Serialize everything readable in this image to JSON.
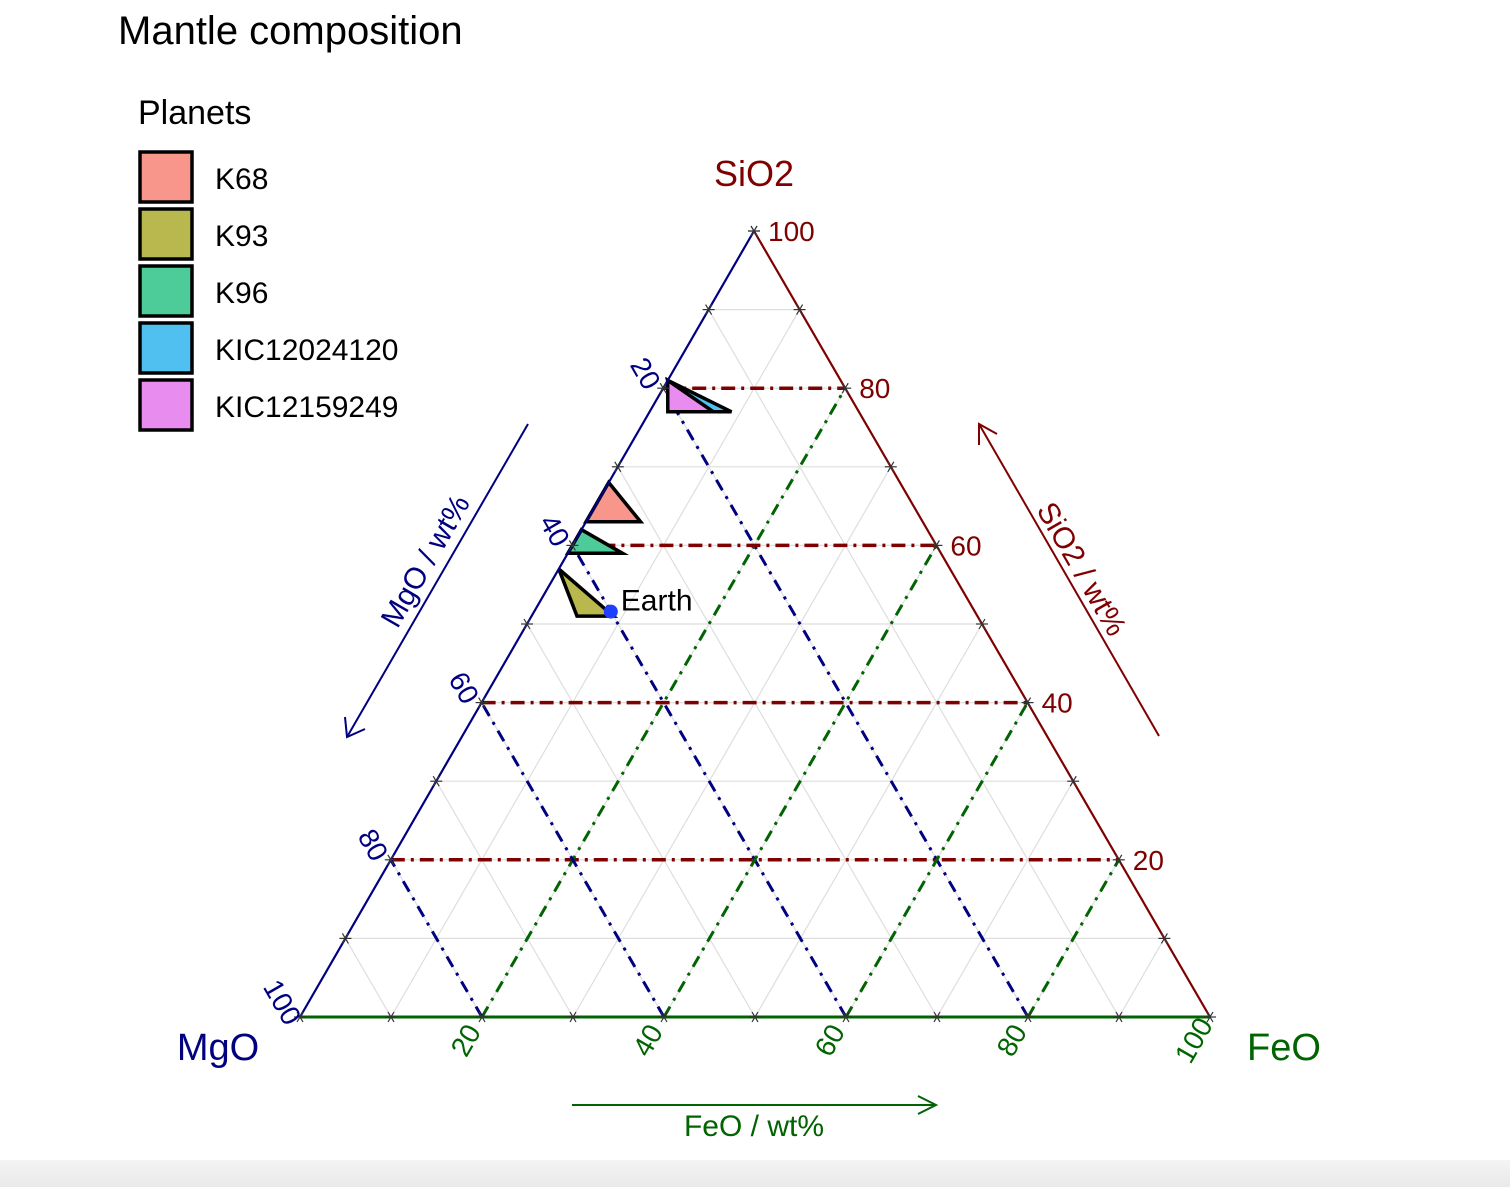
{
  "chart_data": {
    "type": "ternary",
    "title": "Mantle composition",
    "legend": {
      "title": "Planets",
      "position": "top-left",
      "entries": [
        {
          "name": "K68",
          "color": "#F8968B"
        },
        {
          "name": "K93",
          "color": "#B8B84F"
        },
        {
          "name": "K96",
          "color": "#4DCB98"
        },
        {
          "name": "KIC12024120",
          "color": "#4FC0F0"
        },
        {
          "name": "KIC12159249",
          "color": "#E98CF0"
        }
      ]
    },
    "axes": {
      "top": {
        "vertex_label": "SiO2",
        "title": "SiO2 / wt%",
        "color": "#7F0000"
      },
      "left": {
        "vertex_label": "MgO",
        "title": "MgO / wt%",
        "color": "#000080"
      },
      "right": {
        "vertex_label": "FeO",
        "title": "FeO / wt%",
        "color": "#006400"
      },
      "ticks": [
        20,
        40,
        60,
        80,
        100
      ],
      "minor_grid_step": 10,
      "range": [
        0,
        100
      ]
    },
    "regions": [
      {
        "name": "K68",
        "polygon": [
          [
            32,
            68,
            0
          ],
          [
            31,
            63,
            6
          ],
          [
            37,
            63,
            0
          ]
        ]
      },
      {
        "name": "K93",
        "polygon": [
          [
            43,
            57,
            0
          ],
          [
            40,
            51,
            9
          ],
          [
            44,
            51,
            5
          ]
        ]
      },
      {
        "name": "K96",
        "polygon": [
          [
            38,
            62,
            0
          ],
          [
            35,
            59,
            6
          ],
          [
            41,
            59,
            0
          ]
        ]
      },
      {
        "name": "KIC12024120",
        "polygon": [
          [
            19,
            81,
            0
          ],
          [
            14,
            77,
            9
          ],
          [
            20,
            77,
            3
          ]
        ]
      },
      {
        "name": "KIC12159249",
        "polygon": [
          [
            19,
            81,
            0
          ],
          [
            16,
            77,
            7
          ],
          [
            21,
            77,
            2
          ]
        ]
      }
    ],
    "points": [
      {
        "label": "Earth",
        "mgo": 38,
        "sio2": 49,
        "feo": 8,
        "color": "#1F3FFF"
      }
    ]
  }
}
